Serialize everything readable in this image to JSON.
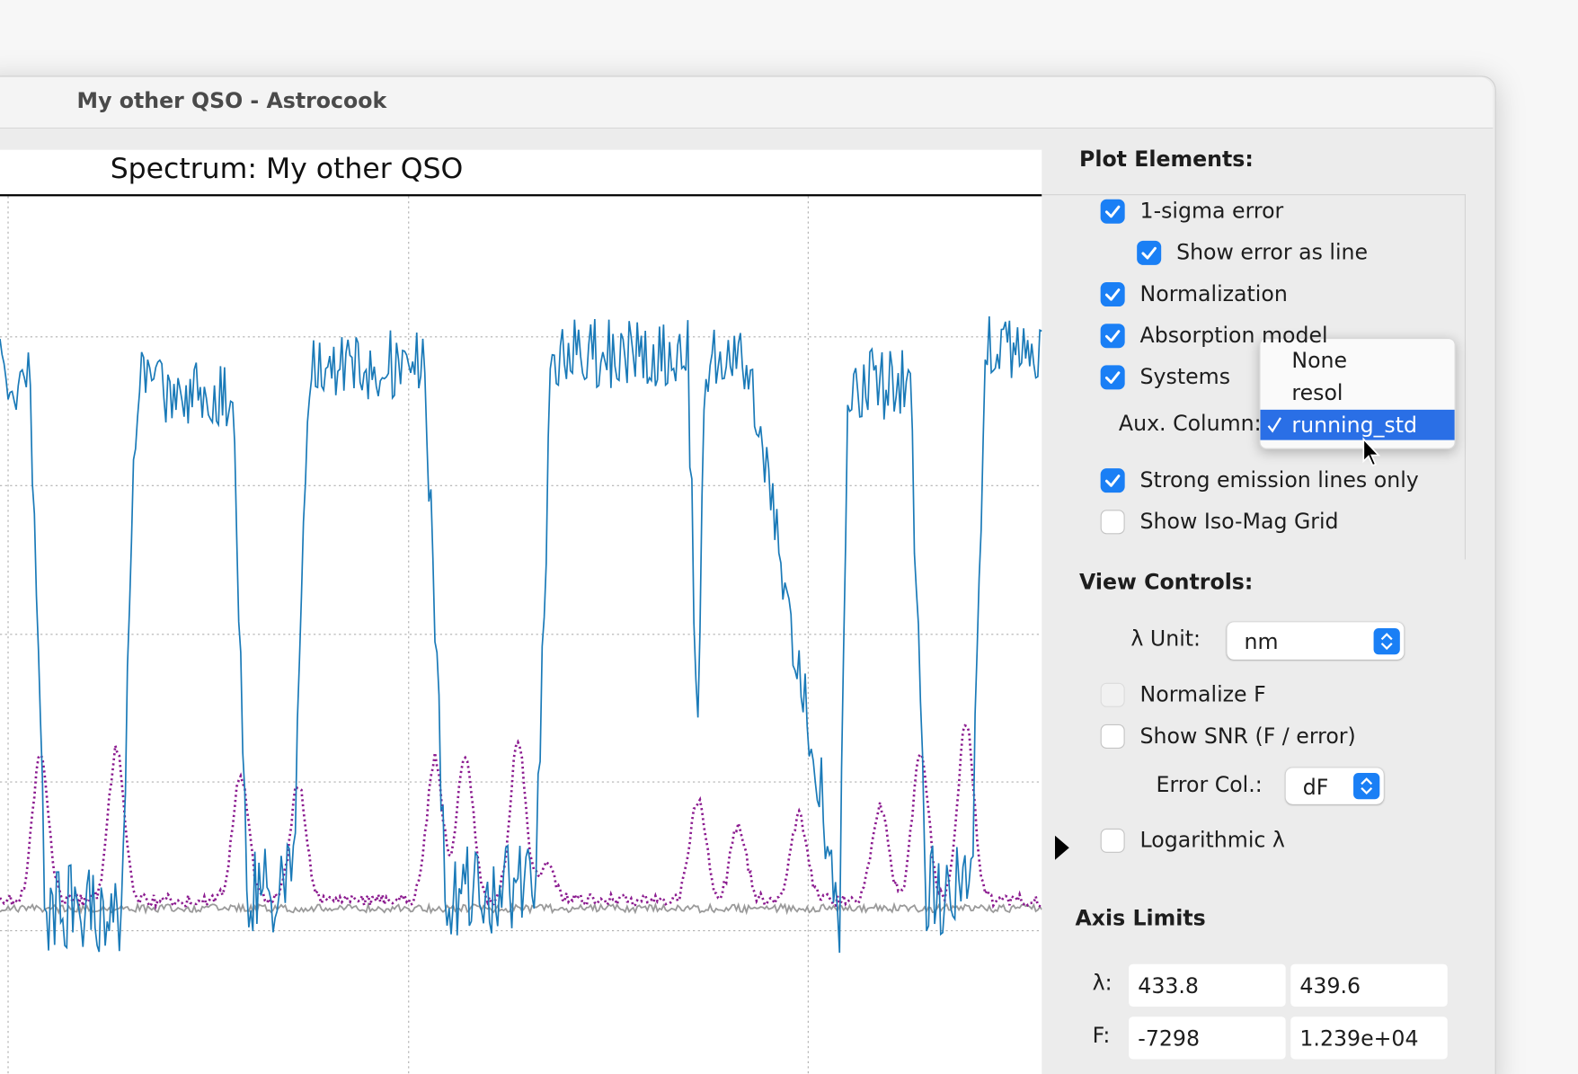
{
  "window": {
    "title": "My other QSO - Astrocook"
  },
  "plot": {
    "title": "Spectrum: My other QSO"
  },
  "plot_elements": {
    "heading": "Plot Elements:",
    "checkboxes": [
      {
        "label": "1-sigma error",
        "checked": true,
        "children": [
          {
            "label": "Show error as line",
            "checked": true
          }
        ]
      },
      {
        "label": "Normalization",
        "checked": true
      },
      {
        "label": "Absorption model",
        "checked": true
      },
      {
        "label": "Systems",
        "checked": true
      }
    ],
    "aux_column": {
      "label": "Aux. Column:",
      "choices": [
        "None",
        "resol",
        "running_std"
      ],
      "selected": "running_std"
    },
    "checkboxes_lower": [
      {
        "label": "Strong emission lines only",
        "checked": true
      },
      {
        "label": "Show Iso-Mag Grid",
        "checked": false
      }
    ]
  },
  "view_controls": {
    "heading": "View Controls:",
    "lambda_unit": {
      "label": "λ Unit:",
      "value": "nm"
    },
    "normalize_f": {
      "label": "Normalize F",
      "checked": false,
      "enabled": false
    },
    "show_snr": {
      "label": "Show SNR (F / error)",
      "checked": false
    },
    "error_col": {
      "label": "Error Col.:",
      "value": "dF"
    },
    "log_lambda": {
      "label": "Logarithmic λ",
      "checked": false
    }
  },
  "axis_limits": {
    "heading": "Axis Limits",
    "rows": [
      {
        "label": "λ:",
        "min": 433.8,
        "max": 439.6
      },
      {
        "label": "F:",
        "min": -7298,
        "max": "1.239e+04"
      }
    ]
  }
}
